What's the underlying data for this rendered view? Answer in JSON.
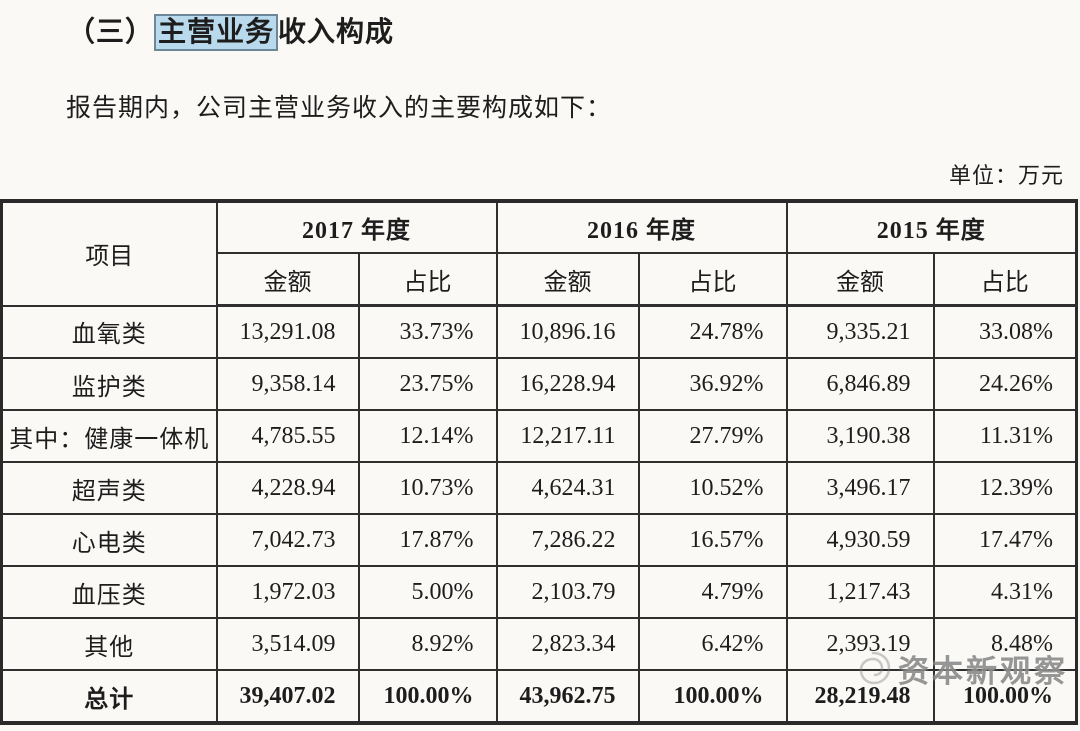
{
  "heading": {
    "prefix": "（三）",
    "highlight": "主营业务",
    "suffix": "收入构成"
  },
  "intro": "报告期内，公司主营业务收入的主要构成如下：",
  "unit_label": "单位：万元",
  "colors": {
    "highlight_bg": "#b9d9ec",
    "highlight_border": "#6e8798",
    "table_border": "#2f2f2f",
    "page_bg": "#faf9f6",
    "watermark_gray": "#6e6e6e"
  },
  "watermark": {
    "text": "资本新观察",
    "icon": "swirl-logo-icon"
  },
  "table": {
    "item_header": "项目",
    "year_headers": [
      "2017 年度",
      "2016 年度",
      "2015 年度"
    ],
    "sub_headers": [
      "金额",
      "占比",
      "金额",
      "占比",
      "金额",
      "占比"
    ],
    "rows": [
      {
        "item": "血氧类",
        "values": [
          "13,291.08",
          "33.73%",
          "10,896.16",
          "24.78%",
          "9,335.21",
          "33.08%"
        ],
        "bold": false
      },
      {
        "item": "监护类",
        "values": [
          "9,358.14",
          "23.75%",
          "16,228.94",
          "36.92%",
          "6,846.89",
          "24.26%"
        ],
        "bold": false
      },
      {
        "item": "其中：健康一体机",
        "values": [
          "4,785.55",
          "12.14%",
          "12,217.11",
          "27.79%",
          "3,190.38",
          "11.31%"
        ],
        "bold": false
      },
      {
        "item": "超声类",
        "values": [
          "4,228.94",
          "10.73%",
          "4,624.31",
          "10.52%",
          "3,496.17",
          "12.39%"
        ],
        "bold": false
      },
      {
        "item": "心电类",
        "values": [
          "7,042.73",
          "17.87%",
          "7,286.22",
          "16.57%",
          "4,930.59",
          "17.47%"
        ],
        "bold": false
      },
      {
        "item": "血压类",
        "values": [
          "1,972.03",
          "5.00%",
          "2,103.79",
          "4.79%",
          "1,217.43",
          "4.31%"
        ],
        "bold": false
      },
      {
        "item": "其他",
        "values": [
          "3,514.09",
          "8.92%",
          "2,823.34",
          "6.42%",
          "2,393.19",
          "8.48%"
        ],
        "bold": false
      },
      {
        "item": "总计",
        "values": [
          "39,407.02",
          "100.00%",
          "43,962.75",
          "100.00%",
          "28,219.48",
          "100.00%"
        ],
        "bold": true
      }
    ]
  }
}
